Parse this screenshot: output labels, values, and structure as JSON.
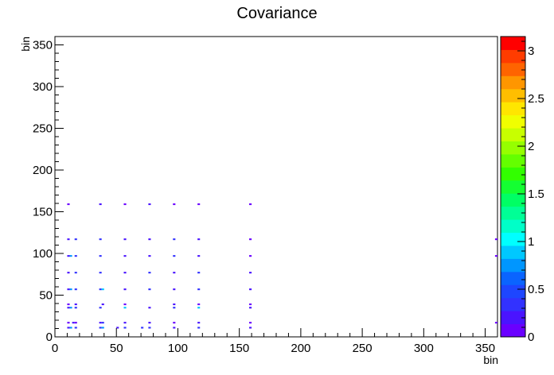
{
  "chart_data": {
    "type": "heatmap",
    "title": "Covariance",
    "xlabel": "bin",
    "ylabel": "bin",
    "xlim": [
      0,
      360
    ],
    "ylim": [
      0,
      360
    ],
    "x_ticks": [
      0,
      50,
      100,
      150,
      200,
      250,
      300,
      350
    ],
    "y_ticks": [
      0,
      50,
      100,
      150,
      200,
      250,
      300,
      350
    ],
    "z_range": [
      0,
      3.15
    ],
    "z_ticks": [
      0,
      0.5,
      1,
      1.5,
      2,
      2.5,
      3
    ],
    "z_tick_labels": [
      "0",
      "0.5",
      "1",
      "1.5",
      "2",
      "2.5",
      "3"
    ],
    "palette": [
      "#6a00ff",
      "#4a14ff",
      "#3232ff",
      "#1e46ff",
      "#0a64ff",
      "#0096ff",
      "#00c8ff",
      "#00ffff",
      "#00ffc8",
      "#00ff96",
      "#00ff64",
      "#14ff32",
      "#32ff00",
      "#64ff00",
      "#96ff00",
      "#c8ff00",
      "#f0ff00",
      "#ffe600",
      "#ffbe00",
      "#ff9600",
      "#ff6400",
      "#ff3c00",
      "#ff0000"
    ],
    "grid": false,
    "legend": "color bar at right",
    "cells": [
      [
        10,
        10,
        0.2
      ],
      [
        12,
        10,
        0.8
      ],
      [
        16,
        10,
        0.3
      ],
      [
        36,
        10,
        0.3
      ],
      [
        38,
        10,
        0.7
      ],
      [
        50,
        10,
        0.2
      ],
      [
        56,
        10,
        0.4
      ],
      [
        70,
        10,
        0.3
      ],
      [
        76,
        10,
        0.3
      ],
      [
        96,
        10,
        0.2
      ],
      [
        116,
        10,
        0.3
      ],
      [
        158,
        10,
        0.2
      ],
      [
        10,
        16,
        0.1
      ],
      [
        14,
        16,
        0.2
      ],
      [
        16,
        16,
        0.1
      ],
      [
        36,
        16,
        0.2
      ],
      [
        38,
        16,
        0.3
      ],
      [
        56,
        16,
        0.2
      ],
      [
        76,
        16,
        0.2
      ],
      [
        96,
        16,
        0.1
      ],
      [
        116,
        16,
        0.2
      ],
      [
        158,
        16,
        0.1
      ],
      [
        358,
        16,
        0.1
      ],
      [
        10,
        34,
        0.2
      ],
      [
        12,
        34,
        0.8
      ],
      [
        16,
        34,
        0.3
      ],
      [
        36,
        34,
        0.3
      ],
      [
        56,
        34,
        0.9
      ],
      [
        76,
        34,
        0.2
      ],
      [
        96,
        34,
        0.3
      ],
      [
        116,
        34,
        0.9
      ],
      [
        158,
        34,
        0.2
      ],
      [
        10,
        38,
        0.1
      ],
      [
        16,
        38,
        0.2
      ],
      [
        38,
        38,
        0.2
      ],
      [
        56,
        38,
        0.1
      ],
      [
        96,
        38,
        0.2
      ],
      [
        116,
        38,
        0.1
      ],
      [
        158,
        38,
        0.1
      ],
      [
        10,
        56,
        0.2
      ],
      [
        12,
        56,
        0.8
      ],
      [
        16,
        56,
        0.3
      ],
      [
        36,
        56,
        0.3
      ],
      [
        38,
        56,
        0.9
      ],
      [
        56,
        56,
        0.2
      ],
      [
        76,
        56,
        0.3
      ],
      [
        96,
        56,
        0.2
      ],
      [
        116,
        56,
        0.3
      ],
      [
        158,
        56,
        0.2
      ],
      [
        10,
        76,
        0.2
      ],
      [
        16,
        76,
        0.3
      ],
      [
        36,
        76,
        0.3
      ],
      [
        56,
        76,
        0.2
      ],
      [
        76,
        76,
        0.3
      ],
      [
        96,
        76,
        0.2
      ],
      [
        116,
        76,
        0.3
      ],
      [
        158,
        76,
        0.2
      ],
      [
        10,
        96,
        0.2
      ],
      [
        12,
        96,
        0.8
      ],
      [
        16,
        96,
        0.3
      ],
      [
        36,
        96,
        0.3
      ],
      [
        56,
        96,
        0.2
      ],
      [
        76,
        96,
        0.2
      ],
      [
        96,
        96,
        0.3
      ],
      [
        116,
        96,
        0.2
      ],
      [
        158,
        96,
        0.1
      ],
      [
        358,
        96,
        0.1
      ],
      [
        10,
        116,
        0.2
      ],
      [
        16,
        116,
        0.3
      ],
      [
        36,
        116,
        0.3
      ],
      [
        56,
        116,
        0.2
      ],
      [
        76,
        116,
        0.2
      ],
      [
        96,
        116,
        0.3
      ],
      [
        116,
        116,
        0.2
      ],
      [
        158,
        116,
        0.1
      ],
      [
        358,
        116,
        0.1
      ],
      [
        10,
        158,
        0.1
      ],
      [
        36,
        158,
        0.2
      ],
      [
        56,
        158,
        0.1
      ],
      [
        76,
        158,
        0.2
      ],
      [
        96,
        158,
        0.1
      ],
      [
        116,
        158,
        0.1
      ],
      [
        158,
        158,
        0.1
      ]
    ]
  }
}
